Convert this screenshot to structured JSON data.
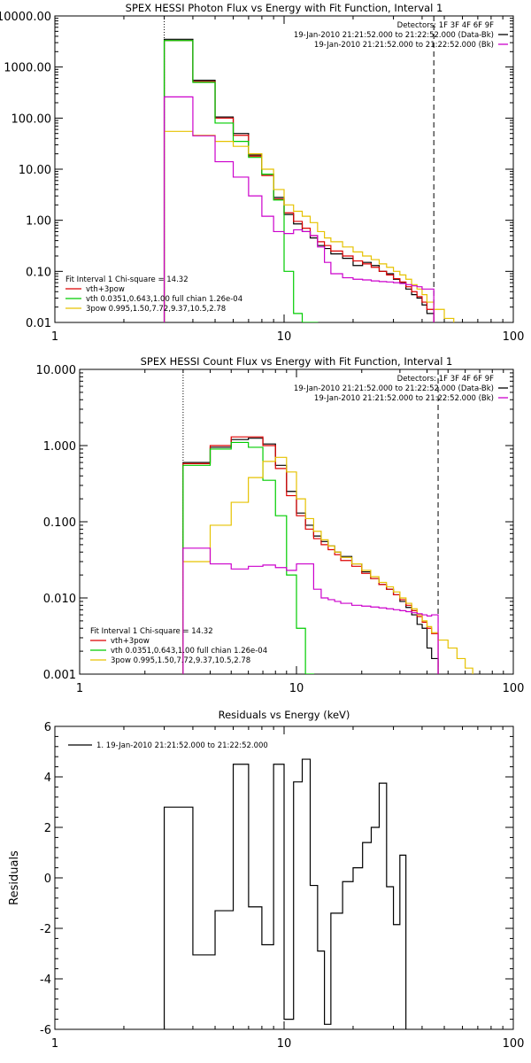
{
  "chart_data": [
    {
      "type": "line",
      "title": "SPEX HESSI Photon Flux vs Energy with Fit Function, Interval 1",
      "xlabel": "",
      "ylabel": "",
      "x_scale": "log",
      "y_scale": "log",
      "xlim": [
        1,
        100
      ],
      "ylim": [
        0.01,
        10000
      ],
      "x_ticks": [
        {
          "v": 1,
          "label": "1"
        },
        {
          "v": 10,
          "label": "10"
        },
        {
          "v": 100,
          "label": "100"
        }
      ],
      "y_ticks": [
        {
          "v": 0.01,
          "label": "0.01"
        },
        {
          "v": 0.1,
          "label": "0.10"
        },
        {
          "v": 1,
          "label": "1.00"
        },
        {
          "v": 10,
          "label": "10.00"
        },
        {
          "v": 100,
          "label": "100.00"
        },
        {
          "v": 1000,
          "label": "1000.00"
        },
        {
          "v": 10000,
          "label": "10000.00"
        }
      ],
      "vlines": [
        {
          "x": 3.0,
          "style": "dotted",
          "color": "#000000"
        },
        {
          "x": 45.0,
          "style": "dashed",
          "color": "#000000"
        }
      ],
      "legend_top": {
        "placement": "top-right",
        "lines": [
          {
            "text": "Detectors: 1F 3F 4F 6F 9F",
            "color": ""
          },
          {
            "text": "19-Jan-2010 21:21:52.000 to 21:22:52.000 (Data-Bk)",
            "color": "#000000"
          },
          {
            "text": "19-Jan-2010 21:21:52.000 to 21:22:52.000 (Bk)",
            "color": "#cc00cc"
          }
        ]
      },
      "legend_bottom": {
        "placement": "bottom-left",
        "header": "Fit Interval 1    Chi-square = 14.32",
        "lines": [
          {
            "text": "vth+3pow",
            "color": "#dd0000"
          },
          {
            "text": "vth 0.0351,0.643,1.00  full chian 1.26e-04",
            "color": "#00cc00"
          },
          {
            "text": "3pow 0.995,1.50,7.72,9.37,10.5,2.78",
            "color": "#e6c200"
          }
        ]
      },
      "edges": [
        3,
        4,
        5,
        6,
        7,
        8,
        9,
        10,
        11,
        12,
        13,
        14,
        15,
        16,
        18,
        20,
        22,
        24,
        26,
        28,
        30,
        32,
        34,
        36,
        38,
        40,
        42,
        45,
        50,
        55,
        60,
        65
      ],
      "series": [
        {
          "name": "Data-Bk",
          "color": "#000000",
          "values": [
            3500,
            550,
            105,
            50,
            19,
            8,
            2.8,
            1.3,
            0.85,
            0.6,
            0.45,
            0.32,
            0.28,
            0.22,
            0.18,
            0.13,
            0.15,
            0.13,
            0.1,
            0.09,
            0.07,
            0.06,
            0.045,
            0.035,
            0.03,
            0.022,
            0.015
          ]
        },
        {
          "name": "vth+3pow",
          "color": "#dd0000",
          "values": [
            3300,
            520,
            100,
            46,
            18,
            7.5,
            2.6,
            1.4,
            0.95,
            0.7,
            0.5,
            0.38,
            0.32,
            0.25,
            0.2,
            0.16,
            0.14,
            0.12,
            0.1,
            0.085,
            0.072,
            0.062,
            0.05,
            0.04,
            0.032,
            0.025,
            0.018
          ]
        },
        {
          "name": "vth",
          "color": "#00cc00",
          "values": [
            3300,
            500,
            80,
            35,
            17,
            8,
            2.5,
            0.1,
            0.015,
            0.01,
            0.01
          ]
        },
        {
          "name": "3pow",
          "color": "#e6c200",
          "values": [
            55,
            46,
            35,
            28,
            20,
            10,
            4,
            2,
            1.5,
            1.2,
            0.9,
            0.6,
            0.45,
            0.38,
            0.3,
            0.24,
            0.2,
            0.17,
            0.14,
            0.12,
            0.1,
            0.085,
            0.07,
            0.055,
            0.045,
            0.035,
            0.025,
            0.018,
            0.012,
            0.009,
            0.007
          ]
        },
        {
          "name": "Bk",
          "color": "#cc00cc",
          "values": [
            260,
            45,
            14,
            7,
            3,
            1.2,
            0.6,
            0.55,
            0.65,
            0.6,
            0.5,
            0.3,
            0.15,
            0.09,
            0.075,
            0.07,
            0.068,
            0.065,
            0.063,
            0.062,
            0.06,
            0.058,
            0.055,
            0.052,
            0.05,
            0.045,
            0.045
          ]
        }
      ]
    },
    {
      "type": "line",
      "title": "SPEX HESSI Count Flux vs Energy with Fit Function, Interval 1",
      "xlabel": "",
      "ylabel": "",
      "x_scale": "log",
      "y_scale": "log",
      "xlim": [
        1,
        100
      ],
      "ylim": [
        0.001,
        10
      ],
      "x_ticks": [
        {
          "v": 1,
          "label": "1"
        },
        {
          "v": 10,
          "label": "10"
        },
        {
          "v": 100,
          "label": "100"
        }
      ],
      "y_ticks": [
        {
          "v": 0.001,
          "label": "0.001"
        },
        {
          "v": 0.01,
          "label": "0.010"
        },
        {
          "v": 0.1,
          "label": "0.100"
        },
        {
          "v": 1,
          "label": "1.000"
        },
        {
          "v": 10,
          "label": "10.000"
        }
      ],
      "vlines": [
        {
          "x": 3.0,
          "style": "dotted",
          "color": "#000000"
        },
        {
          "x": 45.0,
          "style": "dashed",
          "color": "#000000"
        }
      ],
      "legend_top": {
        "placement": "top-right",
        "lines": [
          {
            "text": "Detectors: 1F 3F 4F 6F 9F",
            "color": ""
          },
          {
            "text": "19-Jan-2010 21:21:52.000 to 21:22:52.000 (Data-Bk)",
            "color": "#000000"
          },
          {
            "text": "19-Jan-2010 21:21:52.000 to 21:22:52.000 (Bk)",
            "color": "#cc00cc"
          }
        ]
      },
      "legend_bottom": {
        "placement": "bottom-left",
        "header": "Fit Interval 1    Chi-square = 14.32",
        "lines": [
          {
            "text": "vth+3pow",
            "color": "#dd0000"
          },
          {
            "text": "vth 0.0351,0.643,1.00  full chian 1.26e-04",
            "color": "#00cc00"
          },
          {
            "text": "3pow 0.995,1.50,7.72,9.37,10.5,2.78",
            "color": "#e6c200"
          }
        ]
      },
      "edges": [
        3,
        4,
        5,
        6,
        7,
        8,
        9,
        10,
        11,
        12,
        13,
        14,
        15,
        16,
        18,
        20,
        22,
        24,
        26,
        28,
        30,
        32,
        34,
        36,
        38,
        40,
        42,
        45,
        50,
        55,
        60,
        65
      ],
      "series": [
        {
          "name": "Data-Bk",
          "color": "#000000",
          "values": [
            0.6,
            0.95,
            1.2,
            1.25,
            1.05,
            0.55,
            0.25,
            0.13,
            0.09,
            0.065,
            0.055,
            0.048,
            0.04,
            0.035,
            0.028,
            0.022,
            0.018,
            0.015,
            0.013,
            0.011,
            0.009,
            0.0075,
            0.006,
            0.0045,
            0.004,
            0.0022,
            0.0016
          ]
        },
        {
          "name": "vth+3pow",
          "color": "#dd0000",
          "values": [
            0.58,
            1.0,
            1.3,
            1.3,
            1.0,
            0.5,
            0.22,
            0.12,
            0.08,
            0.06,
            0.05,
            0.043,
            0.037,
            0.031,
            0.026,
            0.021,
            0.018,
            0.015,
            0.013,
            0.011,
            0.0095,
            0.008,
            0.0068,
            0.0057,
            0.0048,
            0.004,
            0.0034
          ]
        },
        {
          "name": "vth",
          "color": "#00cc00",
          "values": [
            0.55,
            0.9,
            1.1,
            0.95,
            0.35,
            0.12,
            0.02,
            0.004,
            0.001
          ]
        },
        {
          "name": "3pow",
          "color": "#e6c200",
          "values": [
            0.03,
            0.09,
            0.18,
            0.38,
            0.62,
            0.7,
            0.45,
            0.2,
            0.11,
            0.075,
            0.058,
            0.048,
            0.04,
            0.034,
            0.028,
            0.023,
            0.019,
            0.016,
            0.014,
            0.012,
            0.01,
            0.0085,
            0.0072,
            0.006,
            0.005,
            0.0042,
            0.0035,
            0.0028,
            0.0022,
            0.0016,
            0.0012
          ]
        },
        {
          "name": "Bk",
          "color": "#cc00cc",
          "values": [
            0.045,
            0.028,
            0.024,
            0.026,
            0.027,
            0.025,
            0.023,
            0.028,
            0.028,
            0.013,
            0.01,
            0.0095,
            0.009,
            0.0085,
            0.008,
            0.0078,
            0.0076,
            0.0074,
            0.0072,
            0.007,
            0.0068,
            0.0066,
            0.0064,
            0.0062,
            0.006,
            0.0058,
            0.006
          ]
        }
      ]
    },
    {
      "type": "line",
      "title": "Residuals vs Energy (keV)",
      "xlabel": "",
      "ylabel": "Residuals",
      "x_scale": "log",
      "y_scale": "linear",
      "xlim": [
        1,
        100
      ],
      "ylim": [
        -6,
        6
      ],
      "x_ticks": [
        {
          "v": 1,
          "label": "1"
        },
        {
          "v": 10,
          "label": "10"
        },
        {
          "v": 100,
          "label": "100"
        }
      ],
      "y_ticks": [
        {
          "v": -6,
          "label": "-6"
        },
        {
          "v": -4,
          "label": "-4"
        },
        {
          "v": -2,
          "label": "-2"
        },
        {
          "v": 0,
          "label": "0"
        },
        {
          "v": 2,
          "label": "2"
        },
        {
          "v": 4,
          "label": "4"
        },
        {
          "v": 6,
          "label": "6"
        }
      ],
      "vlines": [],
      "legend_top": {
        "placement": "top-left",
        "lines": [
          {
            "text": "1. 19-Jan-2010 21:21:52.000 to 21:22:52.000",
            "color": "#000000"
          }
        ]
      },
      "legend_bottom": null,
      "edges": [
        3,
        4,
        5,
        6,
        7,
        8,
        9,
        10,
        11,
        12,
        13,
        14,
        15,
        16,
        18,
        20,
        22,
        24,
        26,
        28,
        30,
        32,
        34,
        36,
        38,
        40,
        42,
        45
      ],
      "step_start": -6,
      "step_end": -6,
      "series": [
        {
          "name": "1. 19-Jan-2010 21:21:52.000 to 21:22:52.000",
          "color": "#000000",
          "values": [
            2.8,
            -3.05,
            -1.3,
            4.5,
            -1.15,
            -2.65,
            4.5,
            -5.6,
            3.8,
            4.7,
            -0.3,
            -2.9,
            -5.8,
            -1.4,
            -0.15,
            0.4,
            1.4,
            2.0,
            3.75,
            -0.35,
            -1.85,
            0.9
          ]
        }
      ]
    }
  ]
}
